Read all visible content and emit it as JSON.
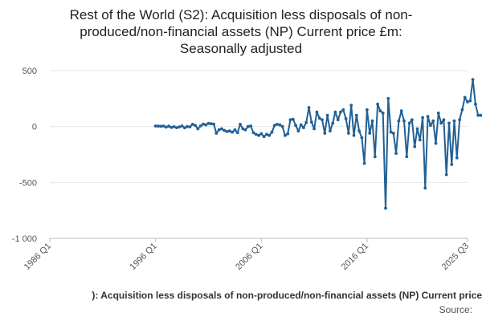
{
  "chart_data": {
    "type": "line",
    "title_lines": [
      "Rest of the World (S2): Acquisition less disposals of non-",
      "produced/non-financial assets (NP) Current price £m:",
      "Seasonally adjusted"
    ],
    "series_label": "): Acquisition less disposals of non-produced/non-financial assets (NP) Current price",
    "source_label": "Source:",
    "ylim": [
      -1000,
      500
    ],
    "y_ticks": [
      500,
      0,
      -500,
      -1000
    ],
    "y_tick_labels": [
      "500",
      "0",
      "-500",
      "-1 000"
    ],
    "x_range_years": [
      1986,
      2025.5
    ],
    "x_ticks": [
      {
        "label": "1986 Q1",
        "year": 1986
      },
      {
        "label": "1996 Q1",
        "year": 1996
      },
      {
        "label": "2006 Q1",
        "year": 2006
      },
      {
        "label": "2016 Q1",
        "year": 2016
      },
      {
        "label": "2025 Q3",
        "year": 2025.5
      }
    ],
    "grid": "horizontal",
    "colors": {
      "line": "#206095",
      "grid": "#e6e6e6",
      "axis": "#bbbbbb"
    },
    "start_period": "1996 Q1",
    "values": [
      5,
      3,
      2,
      5,
      -5,
      3,
      -8,
      -2,
      -10,
      -3,
      5,
      -12,
      0,
      -3,
      20,
      10,
      -20,
      5,
      22,
      15,
      28,
      25,
      22,
      -60,
      -30,
      -20,
      -35,
      -45,
      -40,
      -50,
      -30,
      -55,
      20,
      -20,
      -30,
      0,
      5,
      -55,
      -70,
      -80,
      -65,
      -90,
      -70,
      -80,
      -50,
      10,
      20,
      15,
      0,
      -80,
      -65,
      60,
      65,
      10,
      -40,
      15,
      -10,
      35,
      170,
      40,
      -20,
      130,
      75,
      60,
      -60,
      100,
      -40,
      30,
      130,
      60,
      130,
      150,
      70,
      -60,
      190,
      -80,
      100,
      -40,
      -100,
      -330,
      150,
      -60,
      50,
      -270,
      200,
      140,
      120,
      -730,
      250,
      -50,
      -60,
      -240,
      50,
      140,
      50,
      -270,
      30,
      60,
      -180,
      -20,
      -120,
      80,
      -550,
      90,
      10,
      50,
      -150,
      120,
      30,
      60,
      -430,
      30,
      -340,
      50,
      -280,
      60,
      150,
      260,
      220,
      230,
      420,
      200,
      100,
      100
    ]
  }
}
